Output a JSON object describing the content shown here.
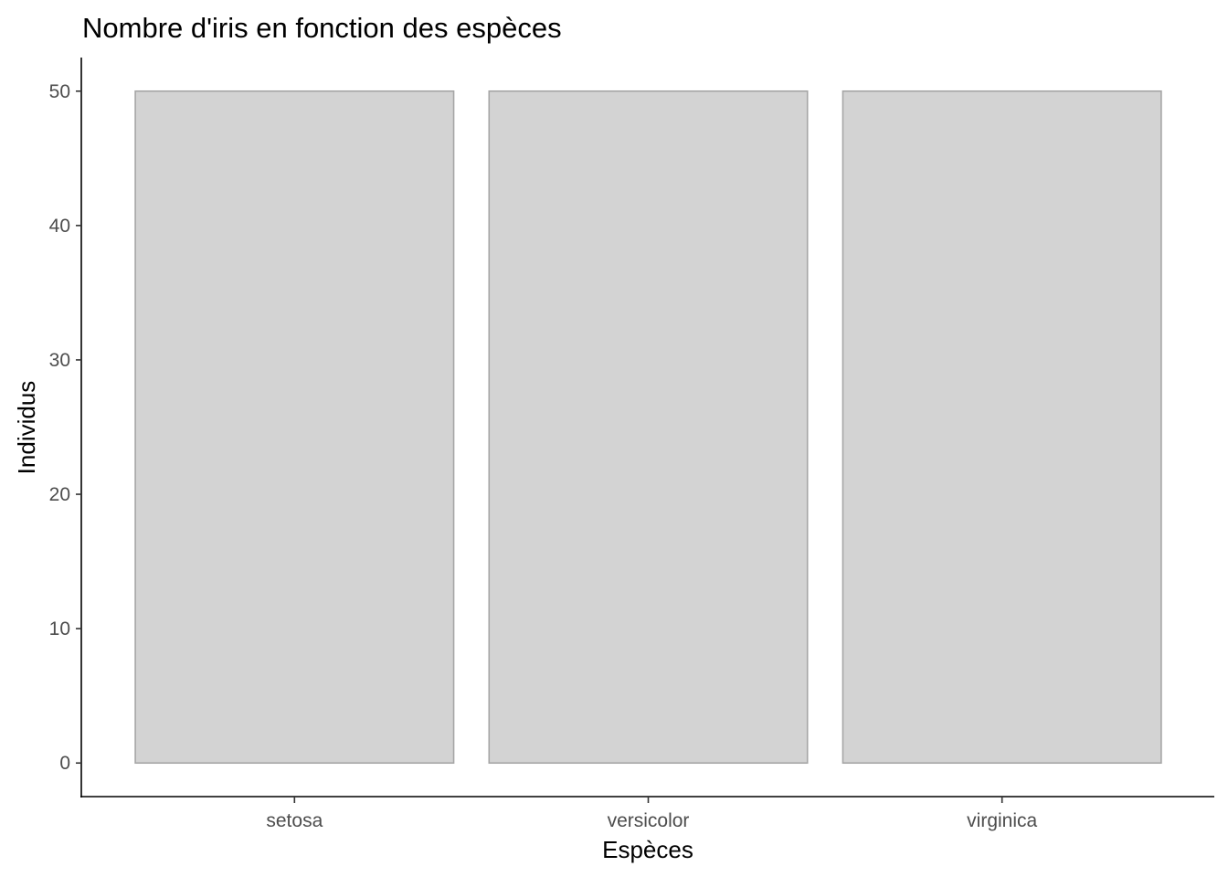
{
  "chart_data": {
    "type": "bar",
    "title": "Nombre d'iris en fonction des espèces",
    "xlabel": "Espèces",
    "ylabel": "Individus",
    "categories": [
      "setosa",
      "versicolor",
      "virginica"
    ],
    "values": [
      50,
      50,
      50
    ],
    "yticks": [
      0,
      10,
      20,
      30,
      40,
      50
    ],
    "ylim": [
      -2.5,
      52.5
    ],
    "grid": false,
    "legend": "none",
    "bar_fill": "#d3d3d3",
    "bar_stroke": "#a6a6a6"
  }
}
